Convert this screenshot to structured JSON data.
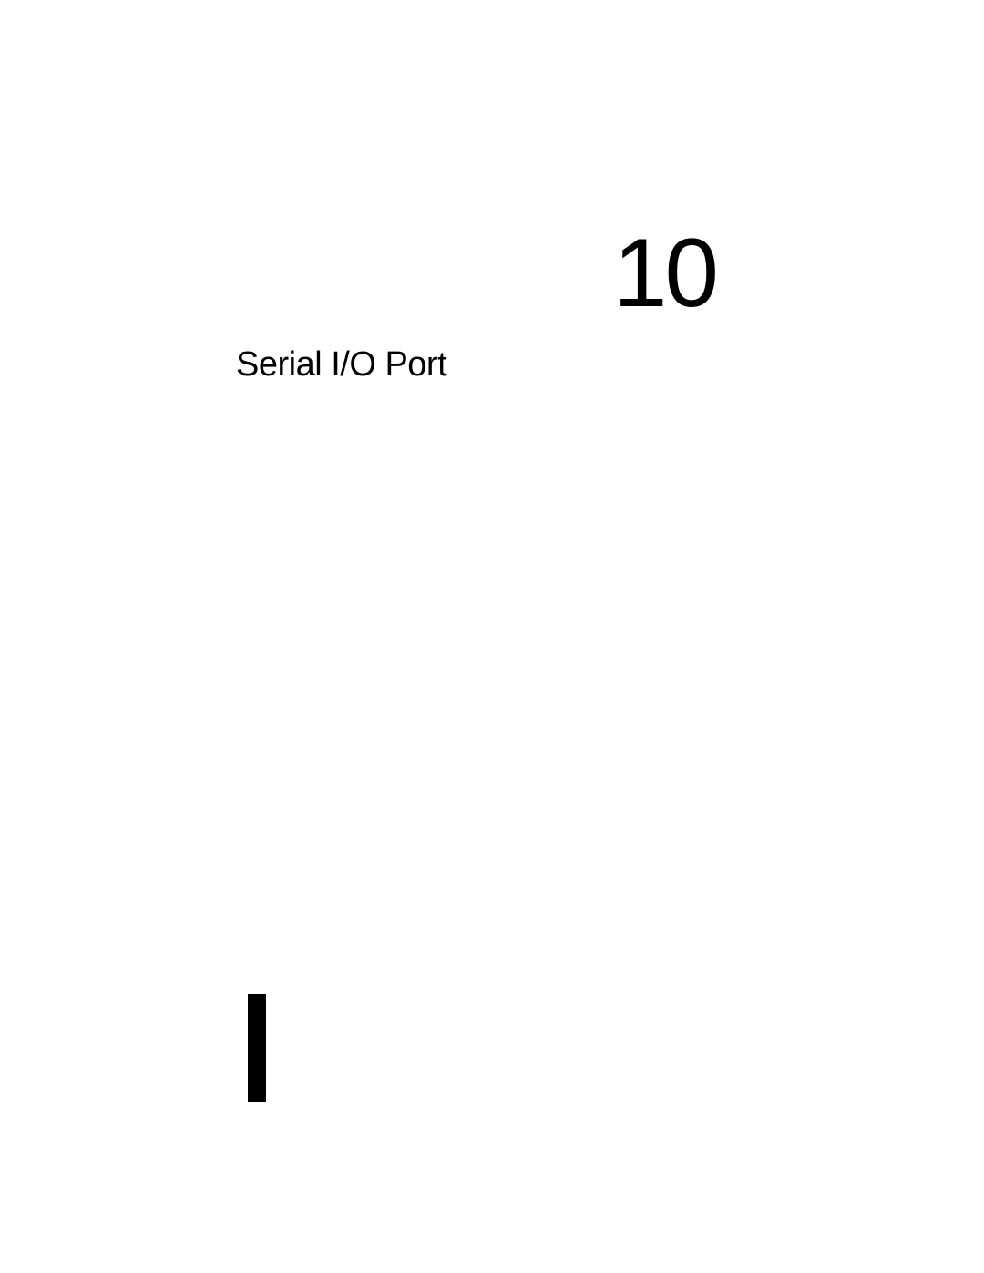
{
  "chapter": {
    "number": "10",
    "title": "Serial I/O Port"
  },
  "styling": {
    "background_color": "#ffffff",
    "text_color": "#000000",
    "chapter_number_fontsize": 107,
    "chapter_title_fontsize": 38,
    "marker_width": 20,
    "marker_height": 118,
    "marker_color": "#000000"
  }
}
